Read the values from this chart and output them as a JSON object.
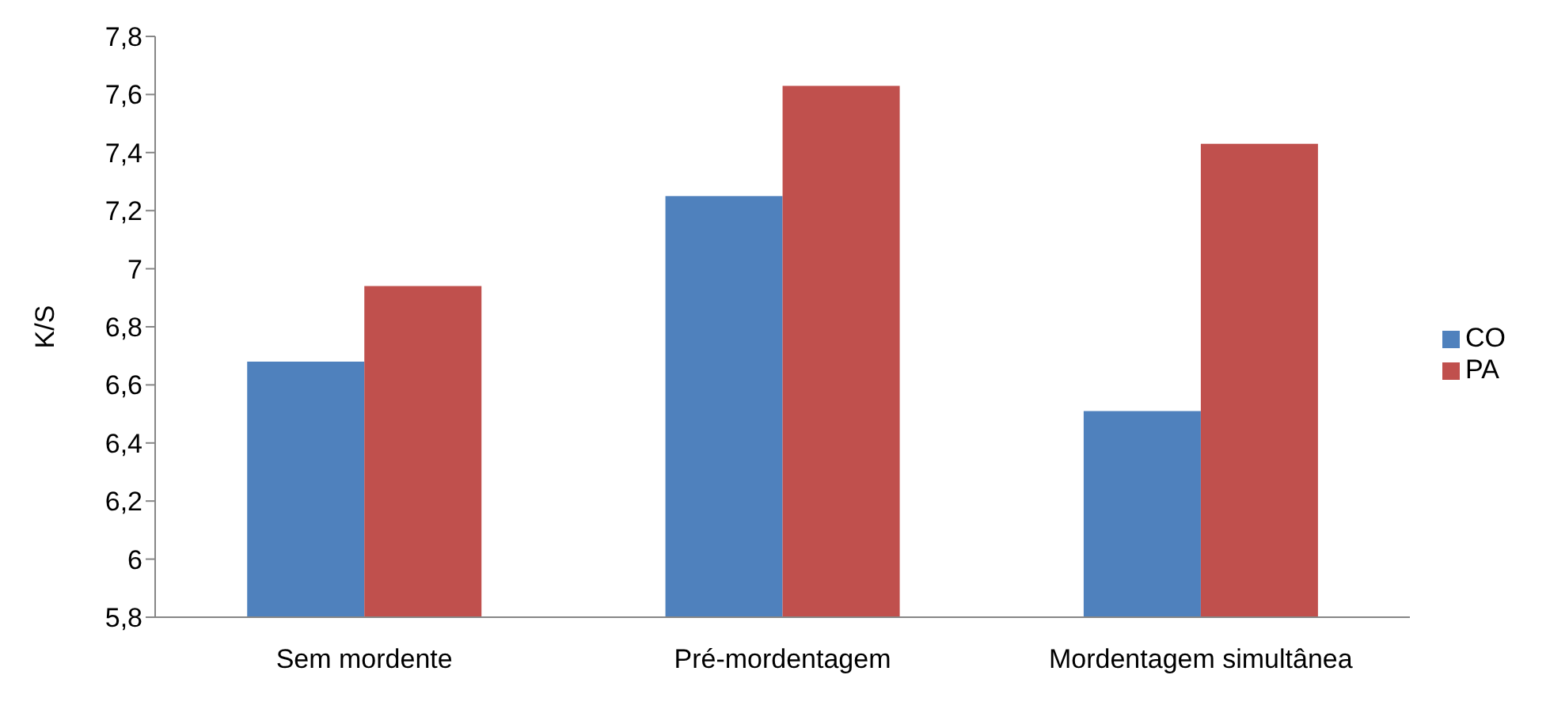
{
  "chart_data": {
    "type": "bar",
    "ylabel": "K/S",
    "categories": [
      "Sem mordente",
      "Pré-mordentagem",
      "Mordentagem simultânea"
    ],
    "series": [
      {
        "name": "CO",
        "color": "#4f81bd",
        "values": [
          6.68,
          7.25,
          6.51
        ]
      },
      {
        "name": "PA",
        "color": "#c0504d",
        "values": [
          6.94,
          7.63,
          7.43
        ]
      }
    ],
    "ylim": [
      5.8,
      7.8
    ],
    "yticks": [
      {
        "value": 5.8,
        "label": "5,8"
      },
      6,
      {
        "value": 6.2,
        "label": "6,2"
      },
      {
        "value": 6.4,
        "label": "6,4"
      },
      {
        "value": 6.6,
        "label": "6,6"
      },
      {
        "value": 6.8,
        "label": "6,8"
      },
      7,
      {
        "value": 7.2,
        "label": "7,2"
      },
      {
        "value": 7.4,
        "label": "7,4"
      },
      {
        "value": 7.6,
        "label": "7,6"
      },
      {
        "value": 7.8,
        "label": "7,8"
      }
    ],
    "grid": false,
    "legend": "right"
  }
}
